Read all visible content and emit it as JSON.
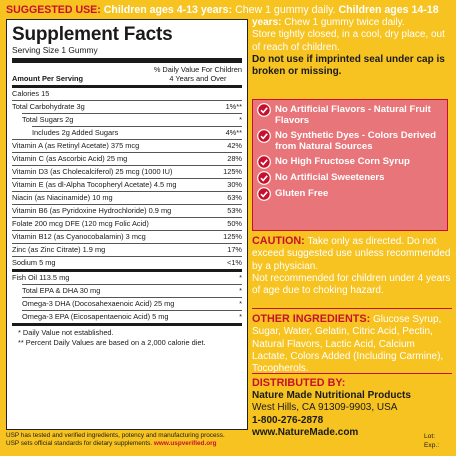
{
  "top": {
    "label": "SUGGESTED USE:",
    "kids_label": "Children ages 4-13 years:",
    "kids_text": "Chew 1 gummy daily.",
    "teen_label": "Children ages 14-18"
  },
  "directions": {
    "line1_label": "years:",
    "line1_text": "Chew 1 gummy twice daily.",
    "store": "Store tightly closed, in a cool, dry place, out of reach of children.",
    "warning": "Do not use if imprinted seal under cap is broken or missing."
  },
  "facts": {
    "title": "Supplement Facts",
    "serving": "Serving Size 1 Gummy",
    "amount_header": "Amount Per Serving",
    "dv_header_line1": "% Daily Value For Children",
    "dv_header_line2": "4 Years and Over",
    "rows": [
      {
        "name": "Calories 15",
        "value": ""
      },
      {
        "name": "Total Carbohydrate 3g",
        "value": "1%**"
      },
      {
        "name": "Total Sugars 2g",
        "value": "*"
      },
      {
        "name": "Includes 2g Added Sugars",
        "value": "4%**"
      },
      {
        "name": "Vitamin A (as Retinyl Acetate) 375 mcg",
        "value": "42%"
      },
      {
        "name": "Vitamin C (as Ascorbic Acid) 25 mg",
        "value": "28%"
      },
      {
        "name": "Vitamin D3 (as Cholecalciferol) 25 mcg (1000 IU)",
        "value": "125%"
      },
      {
        "name": "Vitamin E (as dl-Alpha Tocopheryl Acetate) 4.5 mg",
        "value": "30%"
      },
      {
        "name": "Niacin (as Niacinamide) 10 mg",
        "value": "63%"
      },
      {
        "name": "Vitamin B6 (as Pyridoxine Hydrochloride) 0.9 mg",
        "value": "53%"
      },
      {
        "name": "Folate 200 mcg DFE (120 mcg Folic Acid)",
        "value": "50%"
      },
      {
        "name": "Vitamin B12 (as Cyanocobalamin) 3 mcg",
        "value": "125%"
      },
      {
        "name": "Zinc (as Zinc Citrate) 1.9 mg",
        "value": "17%"
      },
      {
        "name": "Sodium 5 mg",
        "value": "<1%"
      },
      {
        "name": "Fish Oil 113.5 mg",
        "value": "*"
      },
      {
        "name": "Total EPA & DHA 30 mg",
        "value": "*"
      },
      {
        "name": "Omega-3 DHA (Docosahexaenoic Acid) 25 mg",
        "value": "*"
      },
      {
        "name": "Omega-3 EPA (Eicosapentaenoic Acid) 5 mg",
        "value": "*"
      }
    ],
    "note1": "* Daily Value not established.",
    "note2": "** Percent Daily Values are based on a 2,000 calorie diet."
  },
  "usp": {
    "line1": "USP has tested and verified ingredients, potency and manufacturing process.",
    "line2_prefix": "USP sets official standards for dietary supplements.",
    "line2_link": "www.uspverified.org"
  },
  "claims": [
    {
      "text": "No Artificial Flavors - Natural Fruit Flavors"
    },
    {
      "text": "No Synthetic Dyes - Colors Derived from Natural Sources"
    },
    {
      "text": "No High Fructose Corn Syrup"
    },
    {
      "text": "No Artificial Sweeteners"
    },
    {
      "text": "Gluten Free"
    }
  ],
  "caution": {
    "title": "CAUTION:",
    "text1": "Take only as directed. Do not exceed suggested use unless recommended by a physician.",
    "text2": "Not recommended for children under 4 years of age due to choking hazard."
  },
  "ingredients": {
    "title": "OTHER INGREDIENTS:",
    "text": "Glucose Syrup, Sugar, Water, Gelatin, Citric Acid, Pectin, Natural Flavors, Lactic Acid, Calcium Lactate, Colors Added (Including Carmine), Tocopherols."
  },
  "distributor": {
    "title": "DISTRIBUTED BY:",
    "name": "Nature Made Nutritional Products",
    "address": "West Hills, CA 91309-9903, USA",
    "phone": "1-800-276-2878",
    "web": "www.NatureMade.com"
  },
  "lot": {
    "lot_label": "Lot:",
    "exp_label": "Exp.:"
  },
  "colors": {
    "background": "#f6c321",
    "accent_red": "#c8102e",
    "claim_box": "#e8757a"
  },
  "icons": {
    "claim": "white-check-circle-icon"
  }
}
